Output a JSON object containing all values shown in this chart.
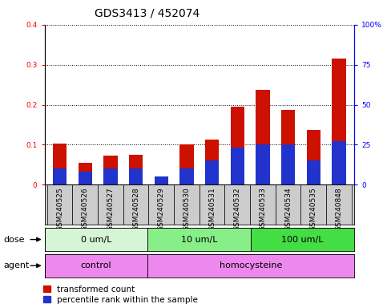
{
  "title": "GDS3413 / 452074",
  "samples": [
    "GSM240525",
    "GSM240526",
    "GSM240527",
    "GSM240528",
    "GSM240529",
    "GSM240530",
    "GSM240531",
    "GSM240532",
    "GSM240533",
    "GSM240534",
    "GSM240535",
    "GSM240848"
  ],
  "red_values": [
    0.103,
    0.055,
    0.072,
    0.075,
    0.018,
    0.101,
    0.112,
    0.195,
    0.238,
    0.187,
    0.137,
    0.315
  ],
  "blue_values_pct": [
    10,
    8,
    10,
    10,
    5,
    10,
    15,
    23,
    25,
    25,
    15,
    27
  ],
  "ylim_left": [
    0,
    0.4
  ],
  "ylim_right": [
    0,
    100
  ],
  "yticks_left": [
    0.0,
    0.1,
    0.2,
    0.3,
    0.4
  ],
  "yticks_right": [
    0,
    25,
    50,
    75,
    100
  ],
  "ytick_labels_right": [
    "0",
    "25",
    "50",
    "75",
    "100%"
  ],
  "dose_groups": [
    {
      "label": "0 um/L",
      "start": 0,
      "end": 4,
      "color": "#d5f5d5"
    },
    {
      "label": "10 um/L",
      "start": 4,
      "end": 8,
      "color": "#88ee88"
    },
    {
      "label": "100 um/L",
      "start": 8,
      "end": 12,
      "color": "#44dd44"
    }
  ],
  "agent_groups": [
    {
      "label": "control",
      "start": 0,
      "end": 4,
      "color": "#ee88ee"
    },
    {
      "label": "homocysteine",
      "start": 4,
      "end": 12,
      "color": "#ee88ee"
    }
  ],
  "legend_red": "transformed count",
  "legend_blue": "percentile rank within the sample",
  "bar_width": 0.55,
  "bar_color_red": "#cc1100",
  "bar_color_blue": "#2233cc",
  "dose_label": "dose",
  "agent_label": "agent",
  "title_fontsize": 10,
  "tick_fontsize": 6.5,
  "annot_fontsize": 8,
  "legend_fontsize": 7.5,
  "sample_label_color": "#dddddd"
}
